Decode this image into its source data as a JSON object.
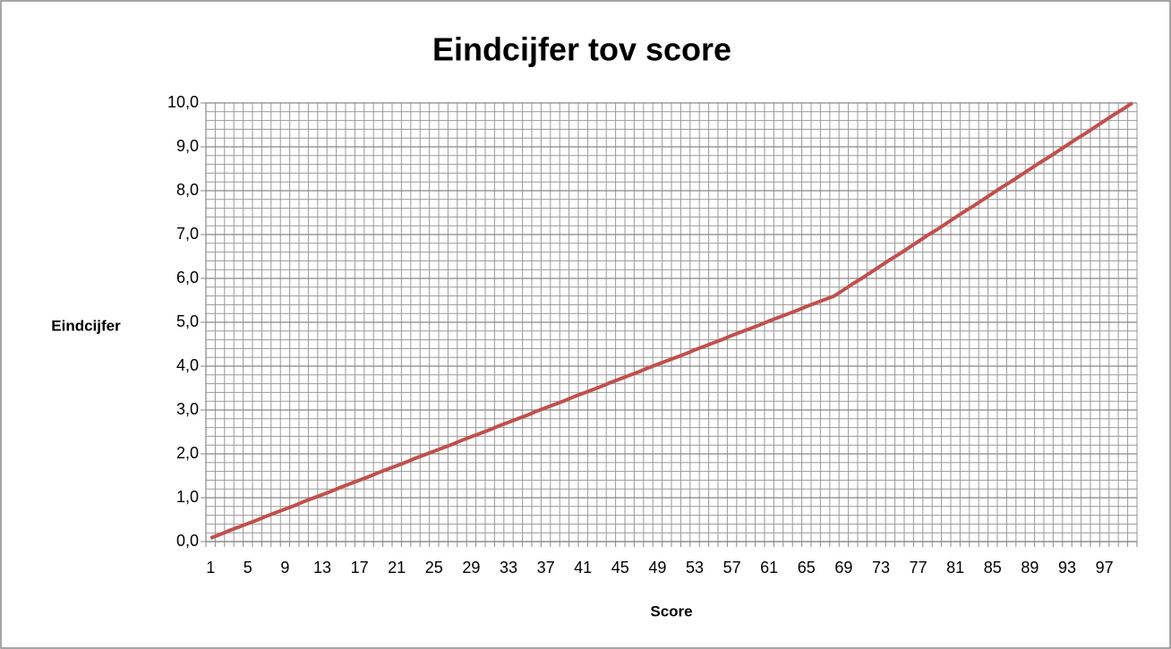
{
  "chart_data": {
    "type": "line",
    "title": "Eindcijfer tov score",
    "x_label": "Score",
    "y_label": "Eindcijfer",
    "categories": [
      "1",
      null,
      null,
      null,
      "5",
      null,
      null,
      null,
      "9",
      null,
      null,
      null,
      "13",
      null,
      null,
      null,
      "17",
      null,
      null,
      null,
      "21",
      null,
      null,
      null,
      "25",
      null,
      null,
      null,
      "29",
      null,
      null,
      null,
      "33",
      null,
      null,
      null,
      "37",
      null,
      null,
      null,
      "41",
      null,
      null,
      null,
      "45",
      null,
      null,
      null,
      "49",
      null,
      null,
      null,
      "53",
      null,
      null,
      null,
      "57",
      null,
      null,
      null,
      "61",
      null,
      null,
      null,
      "65",
      null,
      null,
      null,
      "69",
      null,
      null,
      null,
      "73",
      null,
      null,
      null,
      "77",
      null,
      null,
      null,
      "81",
      null,
      null,
      null,
      "85",
      null,
      null,
      null,
      "89",
      null,
      null,
      null,
      "93",
      null,
      null,
      null,
      "97",
      null,
      null,
      null
    ],
    "series": [
      {
        "color": "#c0504d",
        "values": [
          0.08,
          0.16,
          0.25,
          0.33,
          0.41,
          0.49,
          0.58,
          0.66,
          0.74,
          0.82,
          0.91,
          0.99,
          1.07,
          1.15,
          1.24,
          1.32,
          1.4,
          1.48,
          1.57,
          1.65,
          1.73,
          1.81,
          1.9,
          1.98,
          2.06,
          2.14,
          2.22,
          2.31,
          2.39,
          2.47,
          2.55,
          2.64,
          2.72,
          2.8,
          2.88,
          2.97,
          3.05,
          3.13,
          3.21,
          3.3,
          3.38,
          3.46,
          3.54,
          3.63,
          3.71,
          3.79,
          3.87,
          3.96,
          4.04,
          4.12,
          4.2,
          4.28,
          4.37,
          4.45,
          4.53,
          4.61,
          4.7,
          4.78,
          4.86,
          4.94,
          5.03,
          5.11,
          5.19,
          5.27,
          5.36,
          5.44,
          5.52,
          5.6,
          5.74,
          5.88,
          6.01,
          6.15,
          6.29,
          6.43,
          6.56,
          6.7,
          6.84,
          6.98,
          7.11,
          7.25,
          7.39,
          7.53,
          7.66,
          7.8,
          7.94,
          8.08,
          8.21,
          8.35,
          8.49,
          8.63,
          8.76,
          8.9,
          9.04,
          9.18,
          9.31,
          9.45,
          9.59,
          9.73,
          9.86,
          10.0
        ]
      }
    ],
    "ylim": [
      0,
      10
    ],
    "yticks": [
      {
        "value": 0,
        "label": "0,0"
      },
      {
        "value": 1,
        "label": "1,0"
      },
      {
        "value": 2,
        "label": "2,0"
      },
      {
        "value": 3,
        "label": "3,0"
      },
      {
        "value": 4,
        "label": "4,0"
      },
      {
        "value": 5,
        "label": "5,0"
      },
      {
        "value": 6,
        "label": "6,0"
      },
      {
        "value": 7,
        "label": "7,0"
      },
      {
        "value": 8,
        "label": "8,0"
      },
      {
        "value": 9,
        "label": "9,0"
      },
      {
        "value": 10,
        "label": "10,0"
      }
    ],
    "grid": true
  }
}
